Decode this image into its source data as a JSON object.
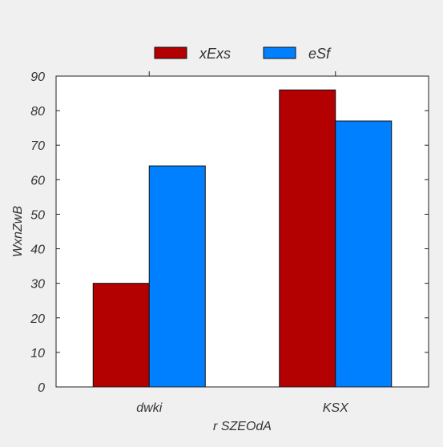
{
  "chart_data": {
    "type": "bar",
    "categories": [
      "dwki",
      "KSX"
    ],
    "series": [
      {
        "name": "xExs",
        "values": [
          30,
          86
        ],
        "color": "#b30000"
      },
      {
        "name": "eSf",
        "values": [
          64,
          77
        ],
        "color": "#0080ff"
      }
    ],
    "title": "",
    "xlabel": "r SZEOdA",
    "ylabel": "WxnZwB",
    "ylim": [
      0,
      90
    ],
    "yticks": [
      0,
      10,
      20,
      30,
      40,
      50,
      60,
      70,
      80,
      90
    ],
    "grid": false,
    "legend_position": "top-center"
  }
}
